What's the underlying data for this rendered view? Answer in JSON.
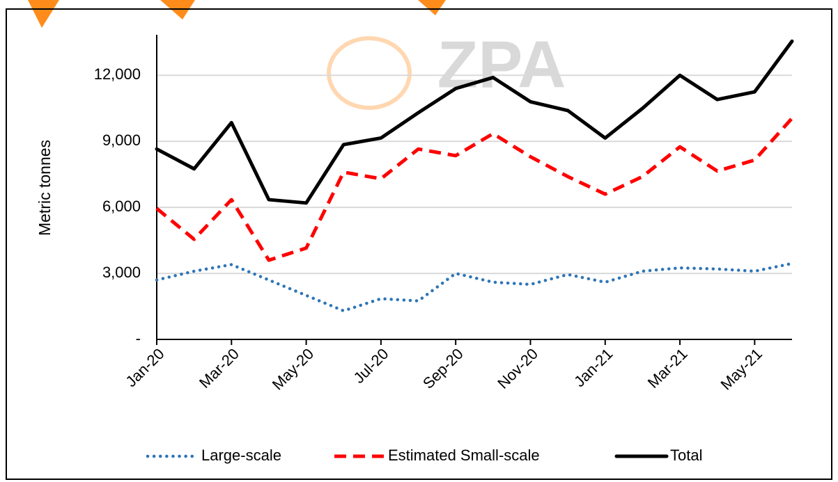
{
  "chart_data": {
    "type": "line",
    "watermark": "ZPA",
    "ylabel": "Metric tonnes",
    "categories": [
      "Jan-20",
      null,
      "Mar-20",
      null,
      "May-20",
      null,
      "Jul-20",
      null,
      "Sep-20",
      null,
      "Nov-20",
      null,
      "Jan-21",
      null,
      "Mar-21",
      null,
      "May-21",
      null
    ],
    "series": [
      {
        "name": "Large-scale",
        "color": "#2e75b6",
        "style": "dotted",
        "values": [
          2700,
          3100,
          3400,
          2700,
          2000,
          1300,
          1850,
          1750,
          3000,
          2600,
          2500,
          2950,
          2600,
          3100,
          3250,
          3200,
          3100,
          3450
        ]
      },
      {
        "name": "Estimated Small-scale",
        "color": "#ff0000",
        "style": "dashed",
        "values": [
          5950,
          4550,
          6350,
          3600,
          4150,
          7600,
          7300,
          8650,
          8350,
          9350,
          8300,
          7400,
          6600,
          7400,
          8750,
          7650,
          8150,
          10050
        ]
      },
      {
        "name": "Total",
        "color": "#000000",
        "style": "solid",
        "values": [
          8650,
          7750,
          9850,
          6350,
          6200,
          8850,
          9150,
          10300,
          11400,
          11900,
          10800,
          10400,
          9150,
          10500,
          12000,
          10900,
          11250,
          13550
        ]
      }
    ],
    "ylim": [
      0,
      14000
    ],
    "yticks": [
      {
        "value": 0,
        "label": "-"
      },
      {
        "value": 3000,
        "label": "3,000"
      },
      {
        "value": 6000,
        "label": "6,000"
      },
      {
        "value": 9000,
        "label": "9,000"
      },
      {
        "value": 12000,
        "label": "12,000"
      }
    ],
    "grid": true,
    "legend": "bottom"
  }
}
